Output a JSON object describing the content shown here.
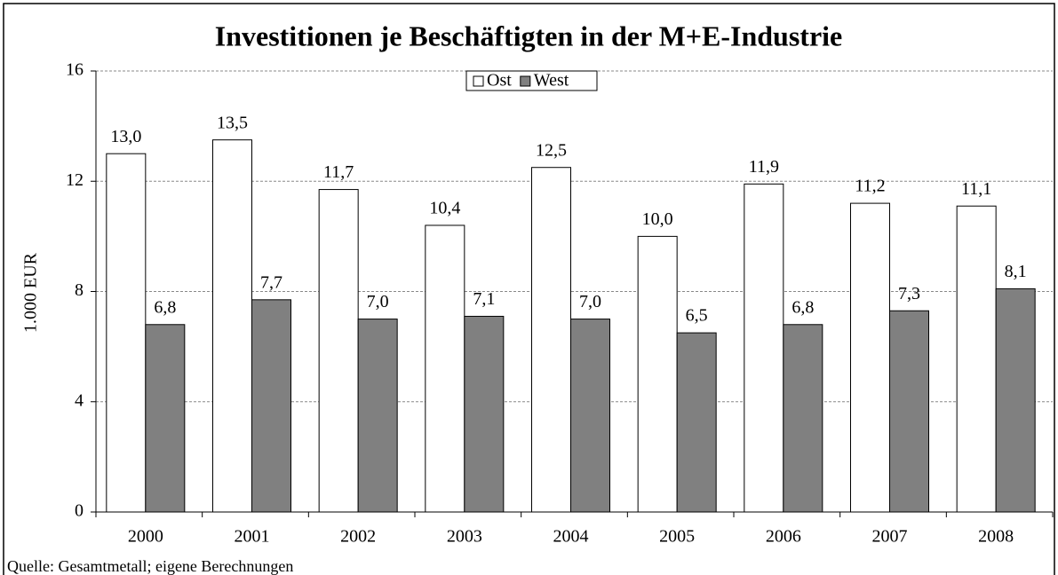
{
  "chart_data": {
    "type": "bar",
    "title": "Investitionen je Beschäftigten in der M+E-Industrie",
    "y_label": "1.000 EUR",
    "source": "Quelle: Gesamtmetall; eigene Berechnungen",
    "categories": [
      "2000",
      "2001",
      "2002",
      "2003",
      "2004",
      "2005",
      "2006",
      "2007",
      "2008"
    ],
    "series": [
      {
        "name": "Ost",
        "color": "#ffffff",
        "values": [
          13.0,
          13.5,
          11.7,
          10.4,
          12.5,
          10.0,
          11.9,
          11.2,
          11.1
        ],
        "value_labels": [
          "13,0",
          "13,5",
          "11,7",
          "10,4",
          "12,5",
          "10,0",
          "11,9",
          "11,2",
          "11,1"
        ]
      },
      {
        "name": "West",
        "color": "#808080",
        "values": [
          6.8,
          7.7,
          7.0,
          7.1,
          7.0,
          6.5,
          6.8,
          7.3,
          8.1
        ],
        "value_labels": [
          "6,8",
          "7,7",
          "7,0",
          "7,1",
          "7,0",
          "6,5",
          "6,8",
          "7,3",
          "8,1"
        ]
      }
    ],
    "ylim": [
      0,
      16
    ],
    "yticks": [
      0,
      4,
      8,
      12,
      16
    ],
    "grid": true,
    "legend": "top"
  }
}
